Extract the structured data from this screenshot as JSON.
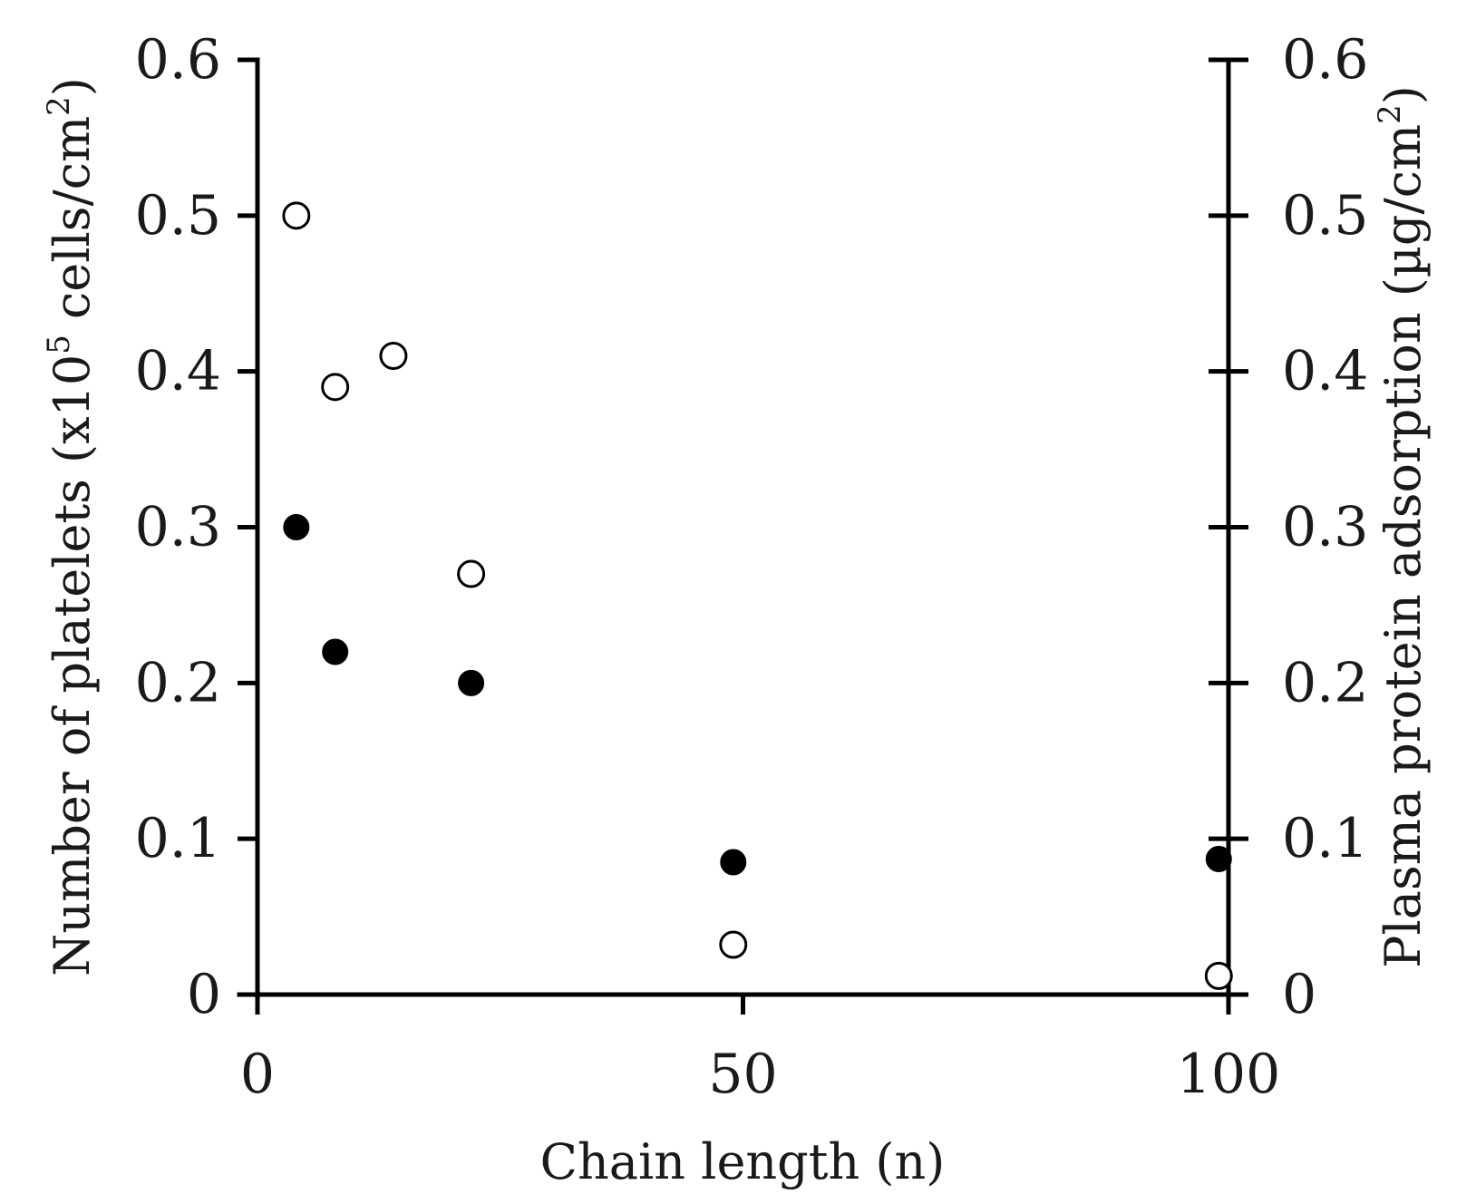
{
  "chart_data": {
    "type": "scatter",
    "xlabel": "Chain length (n)",
    "ylabel_left": {
      "pre": "Number of platelets (x10",
      "sup": "5",
      "mid": " cells/cm",
      "sup2": "2",
      "post": ")"
    },
    "ylabel_right": {
      "pre": "Plasma protein adsorption (µg/cm",
      "sup": "2",
      "post": ")"
    },
    "xlim": [
      0,
      100
    ],
    "ylim_left": [
      0,
      0.6
    ],
    "ylim_right": [
      0,
      0.6
    ],
    "x_ticks": [
      0,
      50,
      100
    ],
    "x_tick_labels": [
      "0",
      "50",
      "100"
    ],
    "y_ticks": [
      0,
      0.1,
      0.2,
      0.3,
      0.4,
      0.5,
      0.6
    ],
    "y_tick_labels_left": [
      "0",
      "0.1",
      "0.2",
      "0.3",
      "0.4",
      "0.5",
      "0.6"
    ],
    "y_tick_labels_right": [
      "0",
      "0.1",
      "0.2",
      "0.3",
      "0.4",
      "0.5",
      "0.6"
    ],
    "grid": false,
    "series": [
      {
        "marker": "filled-circle",
        "color": "#000000",
        "axis": "left",
        "x": [
          4,
          8,
          22,
          49,
          99
        ],
        "y": [
          0.3,
          0.22,
          0.2,
          0.085,
          0.087
        ]
      },
      {
        "marker": "open-circle",
        "color": "#000000",
        "axis": "right",
        "x": [
          4,
          8,
          14,
          22,
          49,
          99
        ],
        "y": [
          0.5,
          0.39,
          0.41,
          0.27,
          0.032,
          0.012
        ]
      }
    ]
  }
}
